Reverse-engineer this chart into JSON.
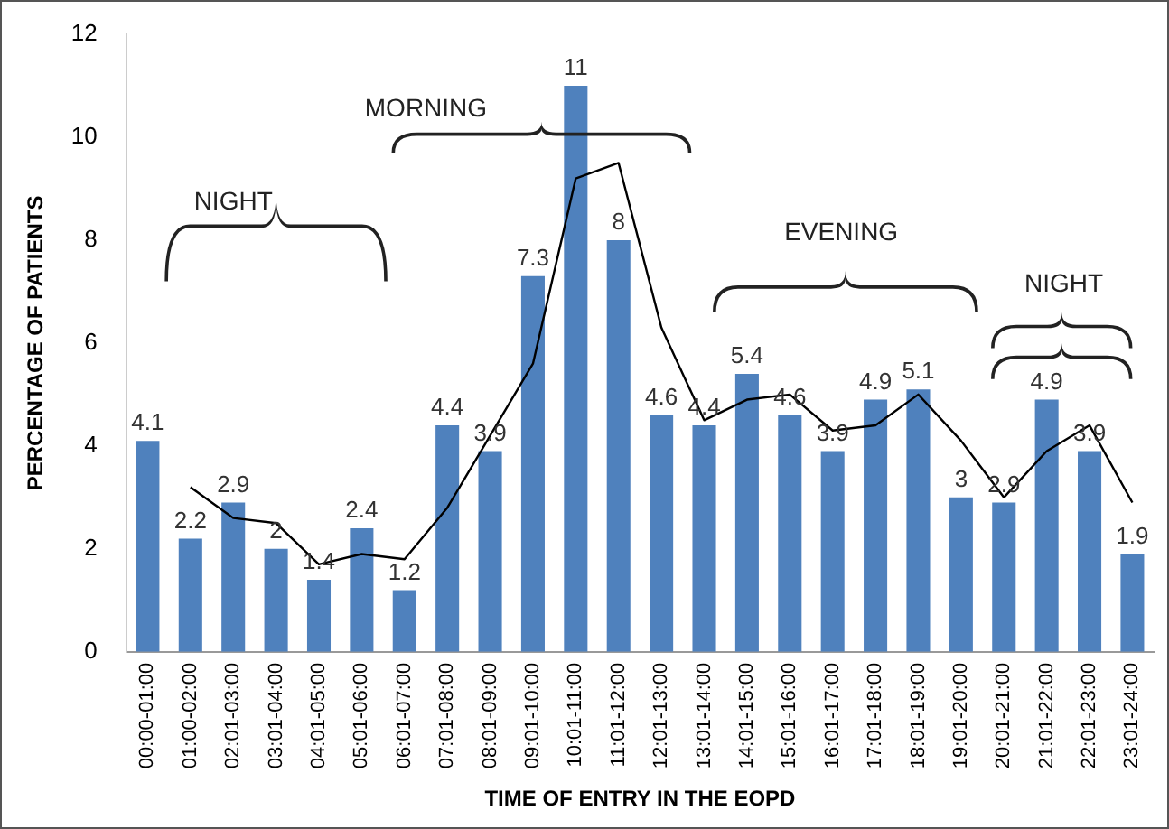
{
  "chart_data": {
    "type": "bar",
    "xlabel": "TIME OF ENTRY IN THE EOPD",
    "ylabel": "PERCENTAGE OF PATIENTS",
    "categories": [
      "00:00-01:00",
      "01:00-02:00",
      "02:01-03:00",
      "03:01-04:00",
      "04:01-05:00",
      "05:01-06:00",
      "06:01-07:00",
      "07:01-08:00",
      "08:01-09:00",
      "09:01-10:00",
      "10:01-11:00",
      "11:01-12:00",
      "12:01-13:00",
      "13:01-14:00",
      "14:01-15:00",
      "15:01-16:00",
      "16:01-17:00",
      "17:01-18:00",
      "18:01-19:00",
      "19:01-20:00",
      "20:01-21:00",
      "21:01-22:00",
      "22:01-23:00",
      "23:01-24:00"
    ],
    "series": [
      {
        "color": "#4f81bd",
        "values": [
          4.1,
          2.2,
          2.9,
          2,
          1.4,
          2.4,
          1.2,
          4.4,
          3.9,
          7.3,
          11,
          8,
          4.6,
          4.4,
          5.4,
          4.6,
          3.9,
          4.9,
          5.1,
          3,
          2.9,
          4.9,
          3.9,
          1.9
        ],
        "value_labels": [
          "4.1",
          "2.2",
          "2.9",
          "2",
          "1.4",
          "2.4",
          "1.2",
          "4.4",
          "3.9",
          "7.3",
          "11",
          "8",
          "4.6",
          "4.4",
          "5.4",
          "4.6",
          "3.9",
          "4.9",
          "5.1",
          "3",
          "2.9",
          "4.9",
          "3.9",
          "1.9"
        ]
      },
      {
        "type": "line",
        "color": "#000000",
        "values": [
          null,
          3.2,
          2.6,
          2.5,
          1.7,
          1.9,
          1.8,
          2.8,
          4.2,
          5.6,
          9.2,
          9.5,
          6.3,
          4.5,
          4.9,
          5,
          4.3,
          4.4,
          5,
          4.1,
          3,
          3.9,
          4.4,
          2.9
        ]
      }
    ],
    "ylim": [
      0,
      12
    ],
    "yticks": [
      0,
      2,
      4,
      6,
      8,
      10,
      12
    ],
    "grid": false,
    "legend": false,
    "marker": "none",
    "annotations": [
      "NIGHT",
      "MORNING",
      "EVENING",
      "NIGHT"
    ]
  }
}
